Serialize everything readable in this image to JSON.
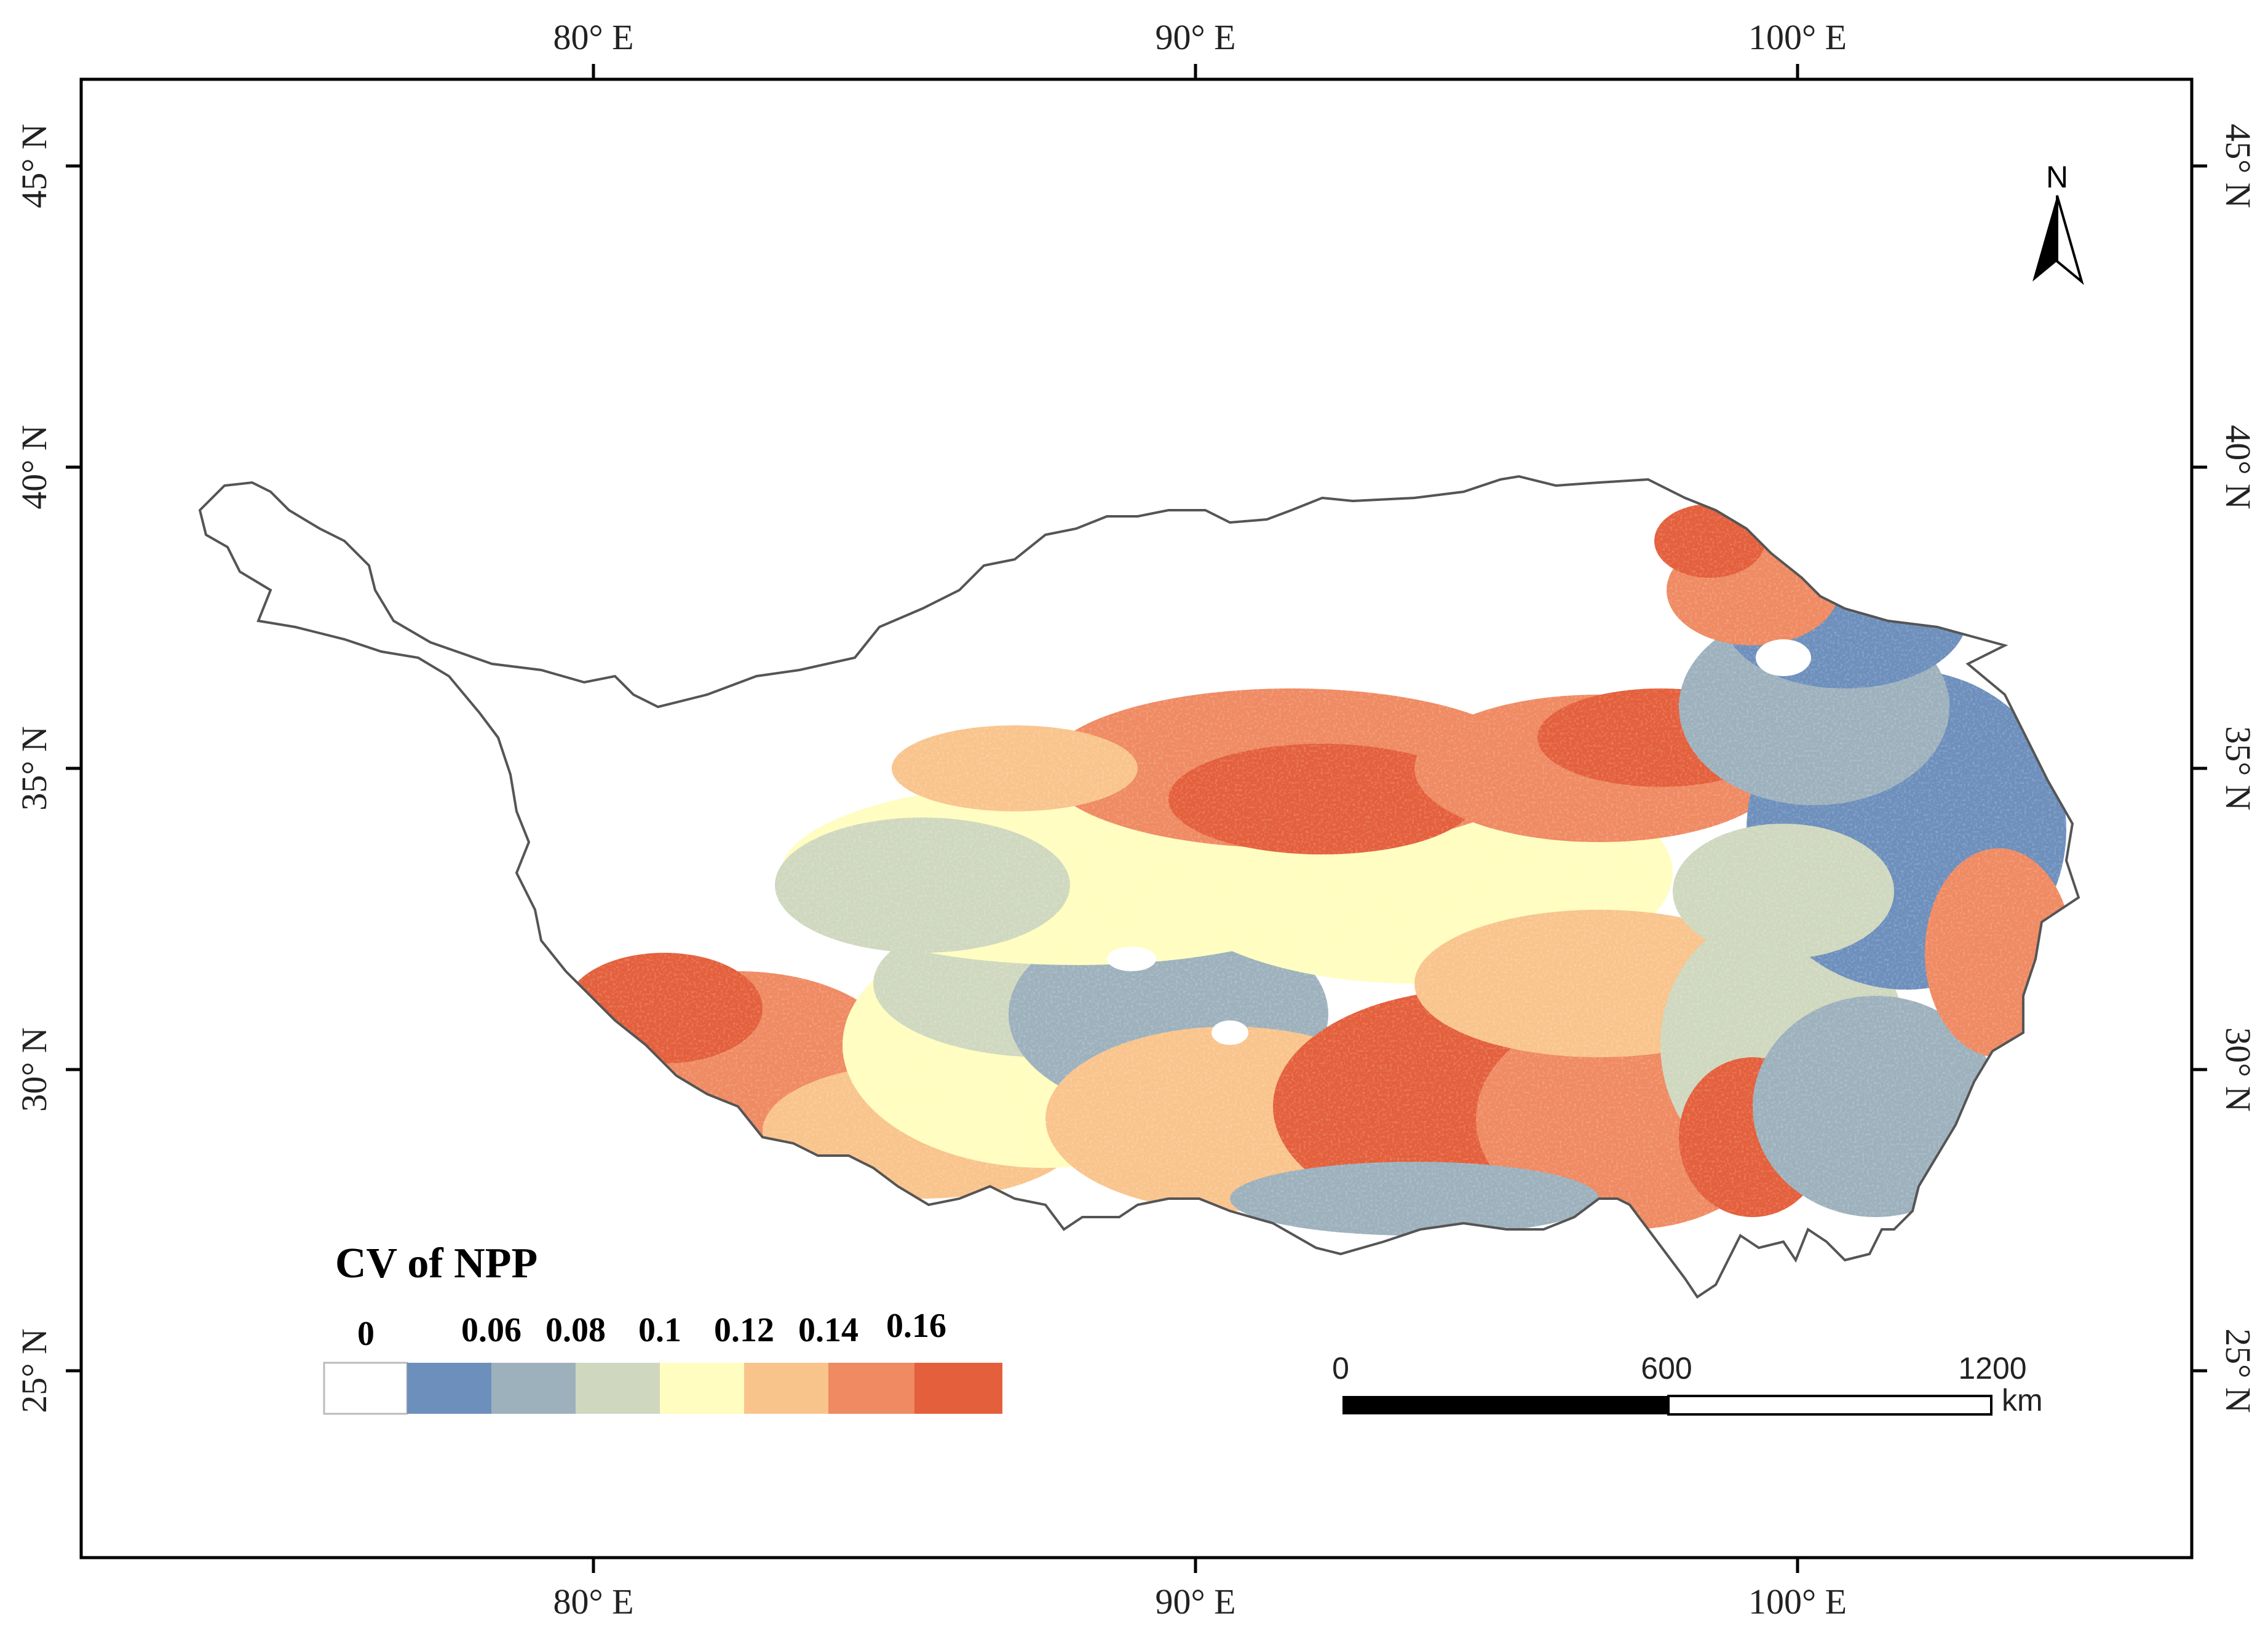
{
  "map": {
    "legend": {
      "title": "CV of NPP",
      "class_labels": [
        "0",
        "0.06",
        "0.08",
        "0.1",
        "0.12",
        "0.14",
        "0.16"
      ],
      "colors": [
        "#ffffff",
        "#6d8fbc",
        "#9db1bd",
        "#cfd8bf",
        "#fffdbf",
        "#f9c48c",
        "#ef8a62",
        "#e45f3c"
      ]
    },
    "axes": {
      "longitude_labels": [
        "80° E",
        "90° E",
        "100° E"
      ],
      "latitude_labels": [
        "45° N",
        "40° N",
        "35° N",
        "30° N",
        "25° N"
      ]
    },
    "north_arrow": {
      "label": "N",
      "icon": "north-arrow-icon"
    },
    "scale_bar": {
      "labels": [
        "0",
        "600",
        "1200"
      ],
      "unit": "km"
    },
    "boundary_color": "#555555"
  }
}
